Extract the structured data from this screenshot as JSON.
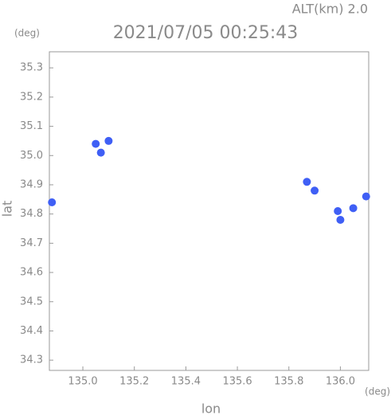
{
  "chart_data": {
    "type": "scatter",
    "title": "2021/07/05 00:25:43",
    "subtitle": "ALT(km) 2.0",
    "x_label": "lon",
    "y_label": "lat",
    "x_unit": "(deg)",
    "y_unit": "(deg)",
    "x": [
      135.05,
      135.1,
      135.07,
      134.88,
      135.87,
      135.9,
      135.99,
      136.0,
      136.05,
      136.1
    ],
    "y": [
      35.04,
      35.05,
      35.01,
      34.84,
      34.91,
      34.88,
      34.81,
      34.78,
      34.82,
      34.86
    ],
    "color": "#3f5ff5",
    "xlim": [
      134.87,
      136.11
    ],
    "ylim": [
      34.265,
      35.355
    ],
    "xticks": [
      {
        "value": 135.0,
        "label": "135.0"
      },
      135.2,
      135.4,
      135.6,
      135.8,
      {
        "value": 136.0,
        "label": "136.0"
      }
    ],
    "yticks": [
      34.3,
      34.4,
      34.5,
      34.6,
      34.7,
      34.8,
      34.9,
      {
        "value": 35.0,
        "label": "35.0"
      },
      35.1,
      35.2,
      35.3
    ]
  }
}
